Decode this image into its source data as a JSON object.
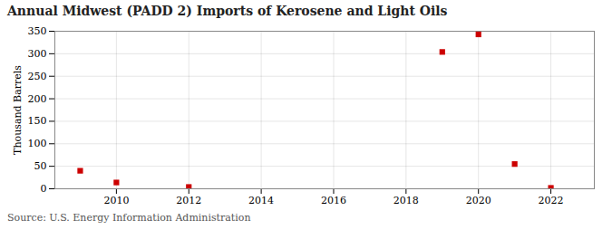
{
  "chart_data": {
    "type": "scatter",
    "title": "Annual Midwest (PADD 2) Imports of Kerosene and Light Oils",
    "ylabel": "Thousand Barrels",
    "annotations": [
      "Source: U.S. Energy Information Administration"
    ],
    "x": [
      2009,
      2010,
      2012,
      2019,
      2020,
      2021,
      2022
    ],
    "values": [
      40,
      14,
      4,
      304,
      343,
      55,
      2
    ],
    "color": "#cc0000",
    "marker": "square",
    "xlim": [
      2008.3,
      2023.2
    ],
    "xticks": [
      2010,
      2012,
      2014,
      2016,
      2018,
      2020,
      2022
    ],
    "ylim": [
      0,
      350
    ],
    "yticks": [
      0,
      50,
      100,
      150,
      200,
      250,
      300,
      350
    ],
    "grid": true
  }
}
